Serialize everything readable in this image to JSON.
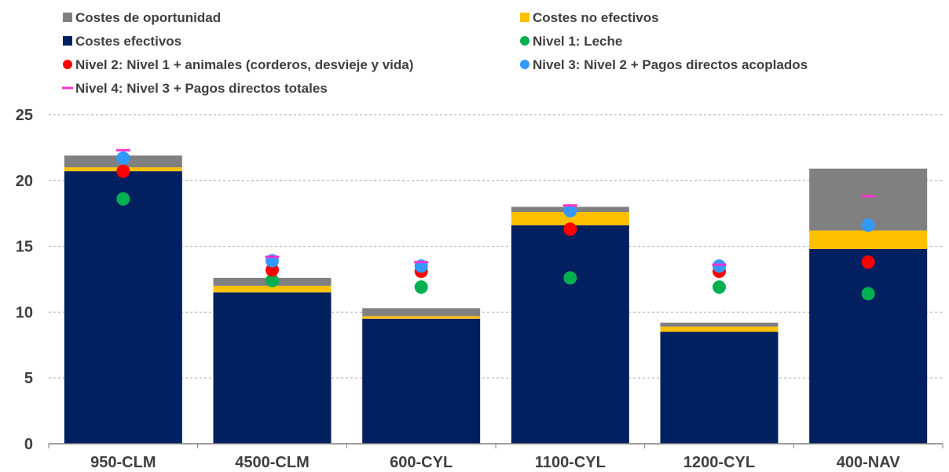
{
  "chart_data": {
    "type": "bar",
    "stacked": true,
    "categories": [
      "950-CLM",
      "4500-CLM",
      "600-CYL",
      "1100-CYL",
      "1200-CYL",
      "400-NAV"
    ],
    "ylim": [
      0,
      25
    ],
    "yticks": [
      0,
      5,
      10,
      15,
      20,
      25
    ],
    "ytick_labels": [
      "0",
      "5",
      "10",
      "15",
      "20",
      "25"
    ],
    "grid": "horizontal dashed",
    "legend_position": "top",
    "series": [
      {
        "name": "Costes efectivos",
        "kind": "bar",
        "color": "#002060",
        "values": [
          20.7,
          11.5,
          9.5,
          16.6,
          8.5,
          14.8
        ]
      },
      {
        "name": "Costes no efectivos",
        "kind": "bar",
        "color": "#FFC000",
        "values": [
          0.3,
          0.5,
          0.2,
          1.0,
          0.4,
          1.4
        ]
      },
      {
        "name": "Costes de oportunidad",
        "kind": "bar",
        "color": "#808080",
        "values": [
          0.9,
          0.6,
          0.6,
          0.4,
          0.3,
          4.7
        ]
      },
      {
        "name": "Nivel 1: Leche",
        "kind": "marker-circle",
        "color": "#00B050",
        "values": [
          18.6,
          12.4,
          11.9,
          12.6,
          11.9,
          11.4
        ]
      },
      {
        "name": "Nivel 2: Nivel 1 + animales (corderos, desvieje y vida)",
        "kind": "marker-circle",
        "color": "#FF0000",
        "values": [
          20.7,
          13.2,
          13.1,
          16.3,
          13.1,
          13.8
        ]
      },
      {
        "name": "Nivel 3: Nivel 2 + Pagos directos acoplados",
        "kind": "marker-circle",
        "color": "#3399FF",
        "values": [
          21.7,
          13.9,
          13.5,
          17.7,
          13.5,
          16.6
        ]
      },
      {
        "name": "Nivel 4: Nivel 3 + Pagos directos totales",
        "kind": "marker-dash",
        "color": "#FF33CC",
        "values": [
          22.3,
          14.2,
          13.8,
          18.1,
          13.6,
          18.8
        ]
      }
    ],
    "legend": [
      {
        "label": "Costes de oportunidad",
        "marker": "square",
        "color": "#808080"
      },
      {
        "label": "Costes no efectivos",
        "marker": "square",
        "color": "#FFC000"
      },
      {
        "label": "Costes efectivos",
        "marker": "square",
        "color": "#002060"
      },
      {
        "label": "Nivel 1: Leche",
        "marker": "circle",
        "color": "#00B050"
      },
      {
        "label": "Nivel 2: Nivel 1 + animales (corderos, desvieje y vida)",
        "marker": "circle",
        "color": "#FF0000"
      },
      {
        "label": "Nivel 3: Nivel 2 + Pagos directos acoplados",
        "marker": "circle",
        "color": "#3399FF"
      },
      {
        "label": "Nivel 4: Nivel 3 + Pagos directos totales",
        "marker": "dash",
        "color": "#FF33CC"
      }
    ]
  }
}
